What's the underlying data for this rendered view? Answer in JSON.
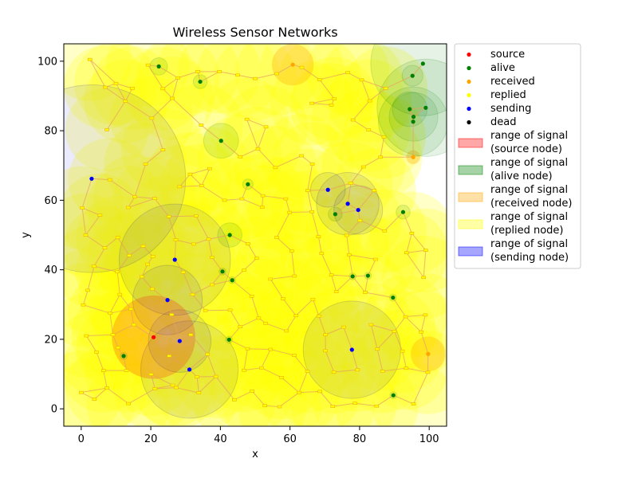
{
  "chart_data": {
    "type": "scatter",
    "title": "Wireless Sensor Networks",
    "xlabel": "x",
    "ylabel": "y",
    "xlim": [
      -5,
      105
    ],
    "ylim": [
      -5,
      105
    ],
    "xticks": [
      0,
      20,
      40,
      60,
      80,
      100
    ],
    "yticks": [
      0,
      20,
      40,
      60,
      80,
      100
    ],
    "grid": false,
    "legend_placement": "outside-right",
    "colors": {
      "source": "#ff0000",
      "alive": "#008000",
      "received": "#ffa500",
      "replied": "#ffff00",
      "sending": "#0000ff",
      "dead": "#000000",
      "link": "#e8a060"
    },
    "legend": [
      {
        "label": "source",
        "kind": "point",
        "color": "#ff0000"
      },
      {
        "label": "alive",
        "kind": "point",
        "color": "#008000"
      },
      {
        "label": "received",
        "kind": "point",
        "color": "#ffa500"
      },
      {
        "label": "replied",
        "kind": "point",
        "color": "#ffff00"
      },
      {
        "label": "sending",
        "kind": "point",
        "color": "#0000ff"
      },
      {
        "label": "dead",
        "kind": "point",
        "color": "#000000"
      },
      {
        "label": "range of signal\n(source node)",
        "kind": "patch",
        "color": "#ff0000"
      },
      {
        "label": "range of signal\n(alive node)",
        "kind": "patch",
        "color": "#008000"
      },
      {
        "label": "range of signal\n(received node)",
        "kind": "patch",
        "color": "#ffa500"
      },
      {
        "label": "range of signal\n(replied node)",
        "kind": "patch",
        "color": "#ffff00"
      },
      {
        "label": "range of signal\n(sending node)",
        "kind": "patch",
        "color": "#0000ff"
      }
    ],
    "series": [
      {
        "name": "source",
        "points": [
          [
            20.8,
            20.6
          ]
        ],
        "ranges": [
          12
        ]
      },
      {
        "name": "alive",
        "points": [
          [
            22.3,
            98.5
          ],
          [
            34.2,
            94.1
          ],
          [
            40.2,
            77.1
          ],
          [
            47.9,
            64.6
          ],
          [
            42.7,
            50.0
          ],
          [
            40.6,
            39.5
          ],
          [
            43.4,
            37.0
          ],
          [
            42.5,
            19.9
          ],
          [
            12.2,
            15.2
          ],
          [
            73.0,
            56.0
          ],
          [
            78.0,
            38.1
          ],
          [
            82.4,
            38.3
          ],
          [
            89.6,
            32.0
          ],
          [
            92.5,
            56.6
          ],
          [
            89.7,
            3.9
          ],
          [
            95.2,
            95.8
          ],
          [
            98.2,
            99.3
          ],
          [
            94.4,
            86.2
          ],
          [
            99.0,
            86.6
          ],
          [
            95.5,
            84.0
          ],
          [
            95.4,
            82.6
          ]
        ],
        "ranges": [
          2.5,
          2,
          5,
          1.5,
          3.5,
          1,
          1,
          1,
          1,
          2,
          1,
          1,
          1,
          2,
          1,
          3,
          15,
          5,
          14,
          7,
          10
        ]
      },
      {
        "name": "received",
        "points": [
          [
            60.8,
            99.0
          ],
          [
            95.4,
            72.4
          ],
          [
            99.7,
            15.8
          ]
        ],
        "ranges": [
          6,
          2,
          5
        ]
      },
      {
        "name": "replied",
        "points": [
          [
            2.5,
            100.5
          ],
          [
            6.9,
            92.5
          ],
          [
            10.0,
            93.6
          ],
          [
            14.7,
            92.2
          ],
          [
            12.7,
            88.5
          ],
          [
            19.2,
            98.9
          ],
          [
            23.5,
            92.1
          ],
          [
            27.8,
            95.2
          ],
          [
            33.5,
            97.0
          ],
          [
            39.7,
            97.0
          ],
          [
            45.0,
            96.0
          ],
          [
            50.0,
            95.0
          ],
          [
            56.2,
            96.4
          ],
          [
            63.4,
            98.2
          ],
          [
            68.5,
            94.7
          ],
          [
            72.7,
            89.2
          ],
          [
            76.6,
            96.7
          ],
          [
            80.6,
            94.6
          ],
          [
            82.9,
            88.6
          ],
          [
            87.5,
            92.2
          ],
          [
            20.3,
            83.6
          ],
          [
            26.2,
            89.3
          ],
          [
            34.5,
            81.6
          ],
          [
            47.6,
            83.3
          ],
          [
            53.1,
            81.1
          ],
          [
            66.3,
            87.9
          ],
          [
            71.9,
            87.4
          ],
          [
            78.1,
            83.1
          ],
          [
            82.6,
            80.2
          ],
          [
            87.0,
            78.2
          ],
          [
            7.4,
            80.3
          ],
          [
            18.5,
            70.4
          ],
          [
            23.5,
            74.5
          ],
          [
            31.3,
            67.5
          ],
          [
            36.9,
            69.1
          ],
          [
            45.7,
            72.5
          ],
          [
            50.8,
            74.8
          ],
          [
            55.8,
            69.4
          ],
          [
            63.3,
            72.8
          ],
          [
            66.4,
            70.4
          ],
          [
            81.1,
            69.6
          ],
          [
            86.0,
            72.4
          ],
          [
            8.2,
            65.9
          ],
          [
            15.4,
            61.0
          ],
          [
            21.1,
            60.5
          ],
          [
            28.3,
            63.9
          ],
          [
            34.6,
            64.2
          ],
          [
            41.2,
            60.0
          ],
          [
            46.2,
            60.4
          ],
          [
            52.2,
            61.3
          ],
          [
            58.8,
            60.4
          ],
          [
            65.1,
            62.8
          ],
          [
            77.5,
            64.9
          ],
          [
            84.2,
            62.8
          ],
          [
            0.3,
            57.8
          ],
          [
            5.4,
            55.7
          ],
          [
            13.5,
            57.9
          ],
          [
            25.2,
            55.3
          ],
          [
            33.0,
            55.5
          ],
          [
            52.0,
            58.0
          ],
          [
            59.9,
            56.5
          ],
          [
            66.3,
            56.7
          ],
          [
            80.1,
            54.2
          ],
          [
            1.3,
            50.0
          ],
          [
            10.5,
            49.3
          ],
          [
            17.8,
            46.8
          ],
          [
            19.1,
            41.6
          ],
          [
            27.2,
            48.6
          ],
          [
            32.3,
            47.4
          ],
          [
            36.6,
            48.8
          ],
          [
            47.9,
            47.5
          ],
          [
            56.2,
            49.3
          ],
          [
            68.2,
            49.5
          ],
          [
            76.3,
            49.9
          ],
          [
            87.2,
            51.2
          ],
          [
            95.0,
            50.5
          ],
          [
            6.8,
            46.3
          ],
          [
            13.8,
            44.1
          ],
          [
            20.6,
            43.8
          ],
          [
            37.6,
            43.6
          ],
          [
            50.4,
            43.3
          ],
          [
            60.5,
            45.4
          ],
          [
            69.1,
            44.7
          ],
          [
            77.0,
            44.3
          ],
          [
            84.6,
            43.0
          ],
          [
            93.5,
            44.9
          ],
          [
            99.0,
            45.6
          ],
          [
            3.7,
            41.0
          ],
          [
            10.4,
            39.4
          ],
          [
            17.4,
            38.0
          ],
          [
            29.3,
            39.3
          ],
          [
            37.6,
            35.7
          ],
          [
            46.8,
            39.9
          ],
          [
            54.4,
            37.3
          ],
          [
            61.3,
            38.2
          ],
          [
            71.9,
            38.5
          ],
          [
            98.4,
            37.8
          ],
          [
            1.9,
            34.1
          ],
          [
            11.1,
            32.9
          ],
          [
            20.4,
            34.5
          ],
          [
            32.0,
            32.9
          ],
          [
            49.0,
            32.4
          ],
          [
            58.0,
            31.7
          ],
          [
            66.6,
            31.5
          ],
          [
            73.3,
            33.7
          ],
          [
            81.6,
            33.5
          ],
          [
            0.6,
            29.9
          ],
          [
            8.3,
            27.5
          ],
          [
            14.3,
            28.7
          ],
          [
            26.0,
            27.1
          ],
          [
            35.7,
            28.3
          ],
          [
            42.8,
            28.4
          ],
          [
            51.0,
            26.1
          ],
          [
            61.7,
            26.8
          ],
          [
            68.3,
            26.7
          ],
          [
            93.2,
            26.5
          ],
          [
            98.9,
            27.0
          ],
          [
            1.5,
            21.0
          ],
          [
            9.1,
            21.3
          ],
          [
            15.1,
            24.2
          ],
          [
            31.5,
            21.3
          ],
          [
            45.7,
            23.6
          ],
          [
            53.0,
            24.6
          ],
          [
            59.0,
            22.4
          ],
          [
            70.2,
            21.3
          ],
          [
            75.4,
            23.5
          ],
          [
            83.3,
            24.2
          ],
          [
            90.0,
            22.3
          ],
          [
            97.7,
            22.1
          ],
          [
            4.4,
            16.3
          ],
          [
            10.6,
            17.6
          ],
          [
            25.3,
            15.2
          ],
          [
            36.3,
            15.7
          ],
          [
            47.8,
            17.3
          ],
          [
            54.4,
            17.1
          ],
          [
            61.2,
            15.4
          ],
          [
            70.2,
            16.7
          ],
          [
            85.1,
            17.2
          ],
          [
            92.3,
            16.6
          ],
          [
            6.4,
            11.0
          ],
          [
            13.0,
            11.0
          ],
          [
            20.1,
            9.9
          ],
          [
            26.3,
            6.8
          ],
          [
            33.3,
            9.2
          ],
          [
            38.7,
            9.3
          ],
          [
            46.8,
            11.1
          ],
          [
            51.8,
            11.8
          ],
          [
            57.6,
            9.0
          ],
          [
            65.0,
            10.8
          ],
          [
            72.6,
            10.6
          ],
          [
            79.4,
            11.2
          ],
          [
            86.6,
            10.8
          ],
          [
            93.4,
            11.7
          ],
          [
            99.6,
            10.5
          ],
          [
            0.0,
            4.7
          ],
          [
            3.8,
            2.8
          ],
          [
            7.4,
            6.0
          ],
          [
            13.6,
            1.5
          ],
          [
            21.2,
            5.8
          ],
          [
            27.3,
            6.1
          ],
          [
            33.8,
            4.6
          ],
          [
            44.0,
            2.6
          ],
          [
            49.1,
            5.1
          ],
          [
            52.8,
            0.9
          ],
          [
            57.0,
            0.6
          ],
          [
            62.6,
            4.7
          ],
          [
            68.6,
            5.0
          ],
          [
            72.3,
            0.7
          ],
          [
            78.7,
            1.6
          ],
          [
            84.9,
            0.8
          ],
          [
            95.5,
            1.4
          ]
        ],
        "ranges": [
          12
        ]
      },
      {
        "name": "sending",
        "points": [
          [
            3.0,
            66.2
          ],
          [
            26.9,
            42.9
          ],
          [
            24.8,
            31.3
          ],
          [
            28.3,
            19.5
          ],
          [
            31.1,
            11.3
          ],
          [
            70.9,
            63.0
          ],
          [
            76.6,
            59.0
          ],
          [
            79.6,
            57.2
          ],
          [
            77.8,
            17.0
          ]
        ],
        "ranges": [
          27,
          16,
          10,
          9,
          14,
          5,
          9,
          7,
          14
        ]
      },
      {
        "name": "dead",
        "points": [],
        "ranges": []
      }
    ]
  }
}
